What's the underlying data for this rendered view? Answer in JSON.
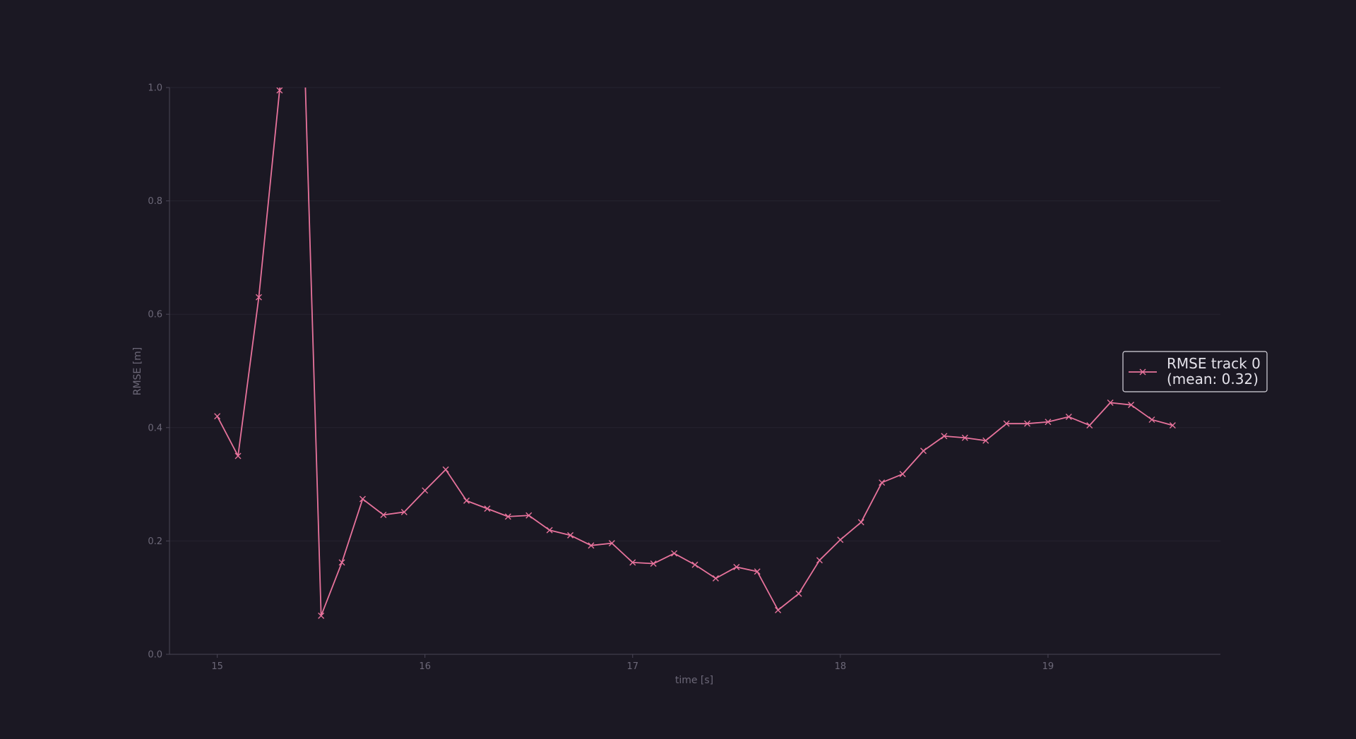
{
  "chart_data": {
    "type": "line",
    "title": "",
    "xlabel": "time [s]",
    "ylabel": "RMSE [m]",
    "xlim": [
      14.77,
      19.83
    ],
    "ylim": [
      0.0,
      1.0
    ],
    "xticks": [
      15,
      16,
      17,
      18,
      19
    ],
    "xtick_labels": [
      "15",
      "16",
      "17",
      "18",
      "19"
    ],
    "yticks": [
      0.0,
      0.2,
      0.4,
      0.6,
      0.8,
      1.0
    ],
    "ytick_labels": [
      "0.0",
      "0.2",
      "0.4",
      "0.6",
      "0.8",
      "1.0"
    ],
    "grid": "horizontal",
    "legend_position": "center-right",
    "colors": {
      "background": "#1b1823",
      "series": "#e8739c",
      "axis": "#4a4656",
      "grid": "#262330",
      "text": "#6c6878",
      "legend_text": "#e4e2ea",
      "legend_border": "#d8d6de"
    },
    "series": [
      {
        "name": "RMSE track 0\n(mean: 0.32)",
        "legend_lines": [
          "RMSE track 0",
          "(mean: 0.32)"
        ],
        "marker": "x",
        "x": [
          15.0,
          15.1,
          15.2,
          15.3,
          15.4,
          15.5,
          15.6,
          15.7,
          15.8,
          15.9,
          16.0,
          16.1,
          16.2,
          16.3,
          16.4,
          16.5,
          16.6,
          16.7,
          16.8,
          16.9,
          17.0,
          17.1,
          17.2,
          17.3,
          17.4,
          17.5,
          17.6,
          17.7,
          17.8,
          17.9,
          18.0,
          18.1,
          18.2,
          18.3,
          18.4,
          18.5,
          18.6,
          18.7,
          18.8,
          18.9,
          19.0,
          19.1,
          19.2,
          19.3,
          19.4,
          19.5,
          19.6
        ],
        "y": [
          0.42,
          0.35,
          0.63,
          0.995,
          1.3,
          0.068,
          0.162,
          0.274,
          0.246,
          0.251,
          0.289,
          0.326,
          0.271,
          0.257,
          0.243,
          0.245,
          0.219,
          0.21,
          0.192,
          0.196,
          0.162,
          0.16,
          0.178,
          0.158,
          0.134,
          0.154,
          0.146,
          0.078,
          0.107,
          0.166,
          0.202,
          0.233,
          0.303,
          0.318,
          0.359,
          0.385,
          0.382,
          0.377,
          0.407,
          0.407,
          0.41,
          0.419,
          0.404,
          0.444,
          0.44,
          0.414,
          0.404
        ]
      }
    ]
  }
}
